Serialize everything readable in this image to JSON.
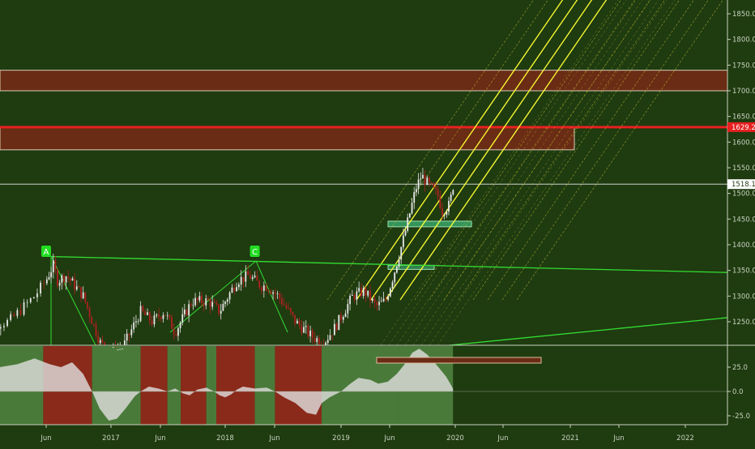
{
  "colors": {
    "background": "#1f3b10",
    "axis_text": "#c8d2c0",
    "candle_up": "#e8e8e8",
    "candle_down": "#b02020",
    "channel_main": "#ffff33",
    "channel_faint": "#cccc33",
    "trendline": "#33dd33",
    "resistance_line": "#e82020",
    "zone_fill": "#6a2c14",
    "support_zone": "#3cb371",
    "osc_area": "#e0e0e0",
    "osc_bg_bull": "#4a7a3a",
    "osc_bg_bear": "#8a2a1a"
  },
  "price_axis": {
    "labels": [
      "1850.0",
      "1800.0",
      "1750.0",
      "1700.0",
      "1650.0",
      "1600.0",
      "1550.0",
      "1500.0",
      "1450.0",
      "1400.0",
      "1350.0",
      "1300.0",
      "1250.0"
    ],
    "badge_red": "1629.2",
    "badge_white": "1518.1"
  },
  "osc_axis": {
    "labels": [
      "25.0",
      "0.0",
      "-25.0"
    ]
  },
  "time_axis": {
    "labels": [
      "Jun",
      "2017",
      "Jun",
      "2018",
      "Jun",
      "2019",
      "Jun",
      "2020",
      "Jun",
      "2021",
      "Jun",
      "2022"
    ]
  },
  "markers": {
    "a": "A",
    "c": "C"
  },
  "chart_data": {
    "type": "candlestick",
    "title": "",
    "xlabel": "",
    "ylabel": "",
    "x_range": [
      "2016-01",
      "2022-11"
    ],
    "ylim": [
      1210,
      1875
    ],
    "resistance_level": 1629.2,
    "current_price": 1518.1,
    "pivots": [
      {
        "label": "A",
        "date": "2016-06",
        "price": 1377
      },
      {
        "label": "C",
        "date": "2018-04",
        "price": 1366
      }
    ],
    "zones": [
      {
        "from": 1700,
        "to": 1740
      },
      {
        "from": 1585,
        "to": 1630
      },
      {
        "from": 1435,
        "to": 1446
      },
      {
        "from": 1352,
        "to": 1360
      }
    ],
    "oscillator": {
      "ylim": [
        -40,
        43
      ],
      "ticks": [
        25.0,
        0.0,
        -25.0
      ]
    }
  }
}
